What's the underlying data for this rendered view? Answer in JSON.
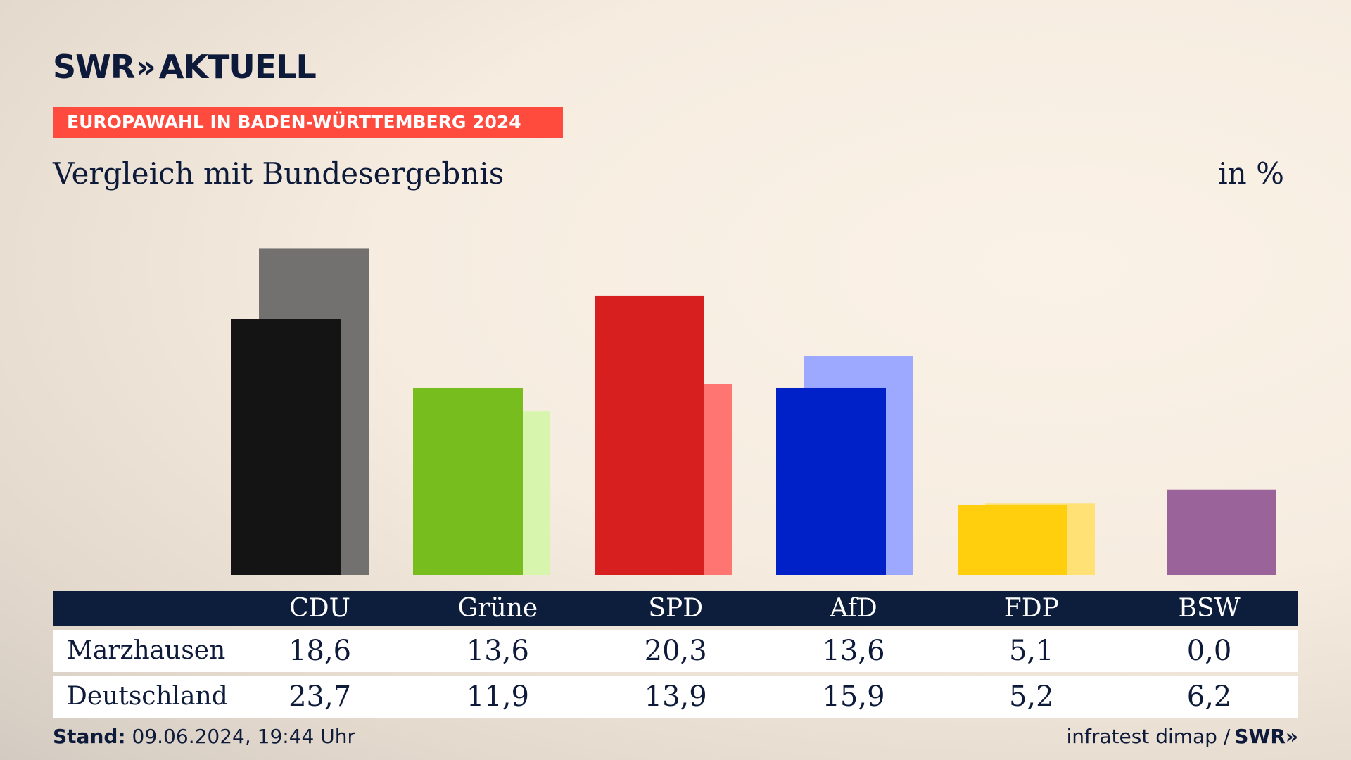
{
  "header": {
    "logo_text": "SWR",
    "logo_chevrons": "»",
    "logo_suffix": "AKTUELL",
    "tag": "EUROPAWAHL IN BADEN-WÜRTTEMBERG 2024",
    "subtitle": "Vergleich mit Bundesergebnis",
    "unit": "in %"
  },
  "chart_data": {
    "type": "bar",
    "categories": [
      "CDU",
      "Grüne",
      "SPD",
      "AfD",
      "FDP",
      "BSW"
    ],
    "series": [
      {
        "name": "Marzhausen",
        "values": [
          18.6,
          13.6,
          20.3,
          13.6,
          5.1,
          0.0
        ],
        "colors": [
          "#141414",
          "#77bd1d",
          "#d81f20",
          "#0021c8",
          "#ffcf0d",
          "#9a6399"
        ]
      },
      {
        "name": "Deutschland",
        "values": [
          23.7,
          11.9,
          13.9,
          15.9,
          5.2,
          6.2
        ],
        "colors": [
          "#727170",
          "#d7f5ad",
          "#ff7572",
          "#9ca9ff",
          "#ffe176",
          "#9a6399"
        ]
      }
    ],
    "ylim": [
      0,
      25
    ]
  },
  "table": {
    "rows": [
      {
        "label": "Marzhausen",
        "values": [
          "18,6",
          "13,6",
          "20,3",
          "13,6",
          "5,1",
          "0,0"
        ]
      },
      {
        "label": "Deutschland",
        "values": [
          "23,7",
          "11,9",
          "13,9",
          "15,9",
          "5,2",
          "6,2"
        ]
      }
    ]
  },
  "footer": {
    "stand_label": "Stand:",
    "stand_value": "09.06.2024, 19:44 Uhr",
    "source": "infratest dimap /",
    "source_logo": "SWR»"
  }
}
